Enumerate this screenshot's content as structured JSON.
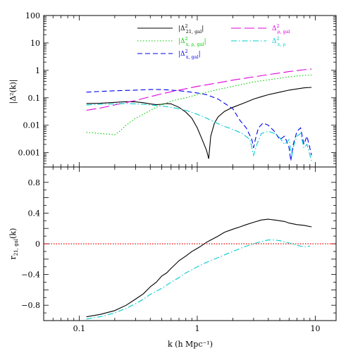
{
  "chart_data": [
    {
      "type": "line",
      "panel": "top",
      "ylabel": "|Δ²(k)|",
      "xscale": "log",
      "yscale": "log",
      "xlim": [
        0.05,
        15
      ],
      "ylim": [
        0.0003,
        100
      ],
      "xticks": [
        {
          "v": 0.1,
          "label": "0.1"
        },
        {
          "v": 1,
          "label": "1"
        },
        {
          "v": 10,
          "label": "10"
        }
      ],
      "yticks": [
        {
          "v": 100,
          "label": "100"
        },
        {
          "v": 10,
          "label": "10"
        },
        {
          "v": 1,
          "label": "1"
        },
        {
          "v": 0.1,
          "label": "0.1"
        },
        {
          "v": 0.01,
          "label": "0.01"
        },
        {
          "v": 0.001,
          "label": "0.001"
        }
      ],
      "legend_position": "top-center",
      "series": [
        {
          "key": "d21gal",
          "legend_main": "|Δ",
          "legend_sup": "2",
          "legend_sub": "21, gal",
          "legend_end": "|",
          "color": "#000000",
          "dash": "",
          "x": [
            0.115,
            0.15,
            0.2,
            0.25,
            0.3,
            0.35,
            0.4,
            0.45,
            0.5,
            0.55,
            0.6,
            0.7,
            0.8,
            0.9,
            1.0,
            1.1,
            1.2,
            1.25,
            1.3,
            1.4,
            1.5,
            1.7,
            2.0,
            2.5,
            3.0,
            3.5,
            4.0,
            5.0,
            6.0,
            7.0,
            8.0,
            9.3
          ],
          "y": [
            0.062,
            0.063,
            0.068,
            0.072,
            0.071,
            0.066,
            0.06,
            0.056,
            0.058,
            0.062,
            0.06,
            0.045,
            0.03,
            0.018,
            0.008,
            0.003,
            0.0012,
            0.0006,
            0.004,
            0.012,
            0.02,
            0.032,
            0.045,
            0.065,
            0.09,
            0.11,
            0.13,
            0.16,
            0.19,
            0.21,
            0.23,
            0.24
          ]
        },
        {
          "key": "dxpgal",
          "legend_main": "|Δ",
          "legend_sup": "2",
          "legend_sub": "x, ρ, gal",
          "legend_end": "|",
          "color": "#00cc00",
          "dash": "1.5,2.5",
          "x": [
            0.115,
            0.15,
            0.2,
            0.22,
            0.25,
            0.3,
            0.35,
            0.4,
            0.5,
            0.6,
            0.7,
            0.8,
            1.0,
            1.2,
            1.5,
            2.0,
            2.5,
            3.0,
            4.0,
            5.0,
            6.0,
            7.0,
            8.0,
            9.3
          ],
          "y": [
            0.0055,
            0.005,
            0.0045,
            0.006,
            0.01,
            0.018,
            0.025,
            0.035,
            0.055,
            0.075,
            0.09,
            0.1,
            0.13,
            0.16,
            0.2,
            0.26,
            0.32,
            0.38,
            0.45,
            0.52,
            0.58,
            0.62,
            0.65,
            0.68
          ]
        },
        {
          "key": "dxgal",
          "legend_main": "|Δ",
          "legend_sup": "2",
          "legend_sub": "x, gal",
          "legend_end": "|",
          "color": "#0000ee",
          "dash": "7,4",
          "x": [
            0.115,
            0.15,
            0.2,
            0.3,
            0.4,
            0.5,
            0.6,
            0.7,
            0.8,
            1.0,
            1.2,
            1.5,
            2.0,
            2.3,
            2.6,
            2.9,
            3.0,
            3.1,
            3.3,
            3.6,
            4.0,
            4.5,
            5.0,
            5.5,
            6.0,
            6.2,
            6.5,
            7.0,
            7.5,
            8.0,
            8.5,
            9.3
          ],
          "y": [
            0.16,
            0.17,
            0.18,
            0.19,
            0.2,
            0.2,
            0.19,
            0.18,
            0.17,
            0.15,
            0.13,
            0.09,
            0.04,
            0.015,
            0.008,
            0.003,
            0.0015,
            0.003,
            0.008,
            0.012,
            0.01,
            0.006,
            0.003,
            0.004,
            0.0015,
            0.0005,
            0.002,
            0.006,
            0.008,
            0.002,
            0.004,
            0.0008
          ]
        },
        {
          "key": "drhogal",
          "legend_main": "Δ",
          "legend_sup": "2",
          "legend_sub": "ρ, gal",
          "legend_end": "",
          "color": "#dd00dd",
          "dash": "14,5",
          "x": [
            0.115,
            0.15,
            0.2,
            0.3,
            0.4,
            0.5,
            0.7,
            1.0,
            1.5,
            2.0,
            3.0,
            4.0,
            5.0,
            6.0,
            7.0,
            8.0,
            9.3
          ],
          "y": [
            0.035,
            0.042,
            0.055,
            0.08,
            0.11,
            0.14,
            0.19,
            0.26,
            0.35,
            0.44,
            0.58,
            0.7,
            0.8,
            0.9,
            0.98,
            1.05,
            1.12
          ]
        },
        {
          "key": "dxrho",
          "legend_main": "Δ",
          "legend_sup": "2",
          "legend_sub": "x, ρ",
          "legend_end": "",
          "color": "#00cccc",
          "dash": "8,3,1.5,3",
          "x": [
            0.115,
            0.15,
            0.2,
            0.25,
            0.3,
            0.35,
            0.4,
            0.5,
            0.6,
            0.7,
            0.8,
            1.0,
            1.2,
            1.4,
            1.6,
            2.0,
            2.4,
            2.8,
            3.0,
            3.2,
            3.5,
            4.0,
            4.5,
            5.0,
            5.5,
            6.0,
            6.3,
            6.6,
            7.0,
            7.5,
            8.0,
            8.5,
            9.3
          ],
          "y": [
            0.055,
            0.058,
            0.06,
            0.062,
            0.06,
            0.058,
            0.055,
            0.05,
            0.045,
            0.04,
            0.035,
            0.025,
            0.018,
            0.013,
            0.01,
            0.007,
            0.005,
            0.003,
            0.0008,
            0.002,
            0.005,
            0.006,
            0.005,
            0.0035,
            0.002,
            0.003,
            0.0007,
            0.002,
            0.004,
            0.005,
            0.0015,
            0.002,
            0.0005
          ]
        }
      ]
    },
    {
      "type": "line",
      "panel": "bottom",
      "xlabel": "k (h Mpc⁻¹)",
      "ylabel_main": "r",
      "ylabel_sub": "21, gal",
      "ylabel_end": "(k)",
      "xscale": "log",
      "xlim": [
        0.05,
        15
      ],
      "ylim": [
        -1,
        1
      ],
      "xticks": [
        {
          "v": 0.1,
          "label": "0.1"
        },
        {
          "v": 1,
          "label": "1"
        },
        {
          "v": 10,
          "label": "10"
        }
      ],
      "yticks": [
        {
          "v": 0.8,
          "label": "0.8"
        },
        {
          "v": 0.4,
          "label": "0.4"
        },
        {
          "v": 0,
          "label": "0"
        },
        {
          "v": -0.4,
          "label": "−0.4"
        },
        {
          "v": -0.8,
          "label": "−0.8"
        }
      ],
      "reference_line": {
        "y": 0,
        "color": "#ee0000",
        "dash": "1.5,2"
      },
      "series": [
        {
          "key": "r21gal",
          "color": "#000000",
          "dash": "",
          "x": [
            0.115,
            0.15,
            0.2,
            0.25,
            0.3,
            0.35,
            0.4,
            0.45,
            0.5,
            0.55,
            0.6,
            0.65,
            0.7,
            0.8,
            0.9,
            1.0,
            1.1,
            1.2,
            1.3,
            1.5,
            1.7,
            2.0,
            2.3,
            2.6,
            3.0,
            3.5,
            4.0,
            4.5,
            5.0,
            5.5,
            6.0,
            7.0,
            8.0,
            9.3
          ],
          "y": [
            -0.95,
            -0.92,
            -0.87,
            -0.8,
            -0.72,
            -0.65,
            -0.56,
            -0.5,
            -0.42,
            -0.38,
            -0.32,
            -0.27,
            -0.22,
            -0.16,
            -0.1,
            -0.06,
            -0.02,
            0.02,
            0.05,
            0.1,
            0.15,
            0.19,
            0.22,
            0.25,
            0.28,
            0.31,
            0.32,
            0.31,
            0.3,
            0.29,
            0.27,
            0.25,
            0.24,
            0.22
          ]
        },
        {
          "key": "rxrho",
          "color": "#00cccc",
          "dash": "8,3,1.5,3",
          "x": [
            0.115,
            0.15,
            0.2,
            0.25,
            0.3,
            0.35,
            0.4,
            0.5,
            0.6,
            0.7,
            0.8,
            1.0,
            1.2,
            1.5,
            2.0,
            2.5,
            3.0,
            3.5,
            4.0,
            4.5,
            5.0,
            6.0,
            7.0,
            8.0,
            9.0
          ],
          "y": [
            -0.98,
            -0.95,
            -0.9,
            -0.84,
            -0.78,
            -0.72,
            -0.66,
            -0.58,
            -0.5,
            -0.44,
            -0.38,
            -0.3,
            -0.24,
            -0.18,
            -0.1,
            -0.04,
            0.0,
            0.03,
            0.05,
            0.05,
            0.04,
            0.01,
            -0.02,
            -0.04,
            -0.03
          ]
        }
      ]
    }
  ]
}
